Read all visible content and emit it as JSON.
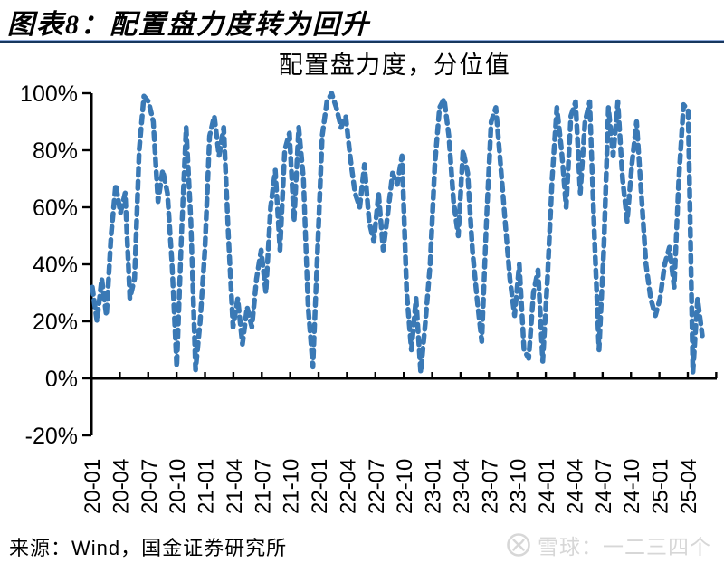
{
  "header": {
    "title": "图表8：配置盘力度转为回升"
  },
  "chart_data": {
    "type": "line",
    "title": "配置盘力度，分位值",
    "series": [
      {
        "name": "配置盘力度分位值",
        "values": [
          32,
          20,
          35,
          22,
          50,
          68,
          58,
          65,
          28,
          35,
          80,
          99,
          97,
          90,
          62,
          73,
          65,
          40,
          4,
          50,
          88,
          55,
          3,
          20,
          45,
          85,
          92,
          78,
          88,
          50,
          18,
          28,
          12,
          25,
          18,
          35,
          45,
          30,
          60,
          73,
          45,
          80,
          86,
          55,
          88,
          70,
          25,
          4,
          45,
          85,
          97,
          100,
          95,
          88,
          92,
          77,
          65,
          60,
          75,
          55,
          48,
          65,
          45,
          58,
          72,
          68,
          78,
          30,
          10,
          28,
          2,
          20,
          40,
          75,
          95,
          98,
          85,
          62,
          50,
          80,
          72,
          45,
          28,
          13,
          55,
          90,
          95,
          75,
          55,
          35,
          22,
          40,
          10,
          7,
          30,
          38,
          6,
          35,
          70,
          95,
          80,
          60,
          92,
          97,
          65,
          90,
          97,
          50,
          10,
          45,
          95,
          78,
          97,
          70,
          55,
          75,
          90,
          65,
          40,
          28,
          22,
          28,
          40,
          46,
          32,
          70,
          96,
          94,
          2,
          28,
          15
        ]
      }
    ],
    "x_range": [
      "2020-01",
      "2025-06"
    ],
    "x_tick_labels": [
      "20-01",
      "20-04",
      "20-07",
      "20-10",
      "21-01",
      "21-04",
      "21-07",
      "21-10",
      "22-01",
      "22-04",
      "22-07",
      "22-10",
      "23-01",
      "23-04",
      "23-07",
      "23-10",
      "24-01",
      "24-04",
      "24-07",
      "24-10",
      "25-01",
      "25-04"
    ],
    "y_tick_labels": [
      "100%",
      "80%",
      "60%",
      "40%",
      "20%",
      "0%",
      "-20%"
    ],
    "y_tick_values": [
      100,
      80,
      60,
      40,
      20,
      0,
      -20
    ],
    "ylim": [
      -20,
      100
    ],
    "grid": false,
    "legend": "none",
    "line_style": "dashed",
    "line_color": "#3A79B5",
    "axis_color": "#000000"
  },
  "footer": {
    "source": "来源：Wind，国金证券研究所",
    "watermark_text": "雪球：一二三四个"
  }
}
